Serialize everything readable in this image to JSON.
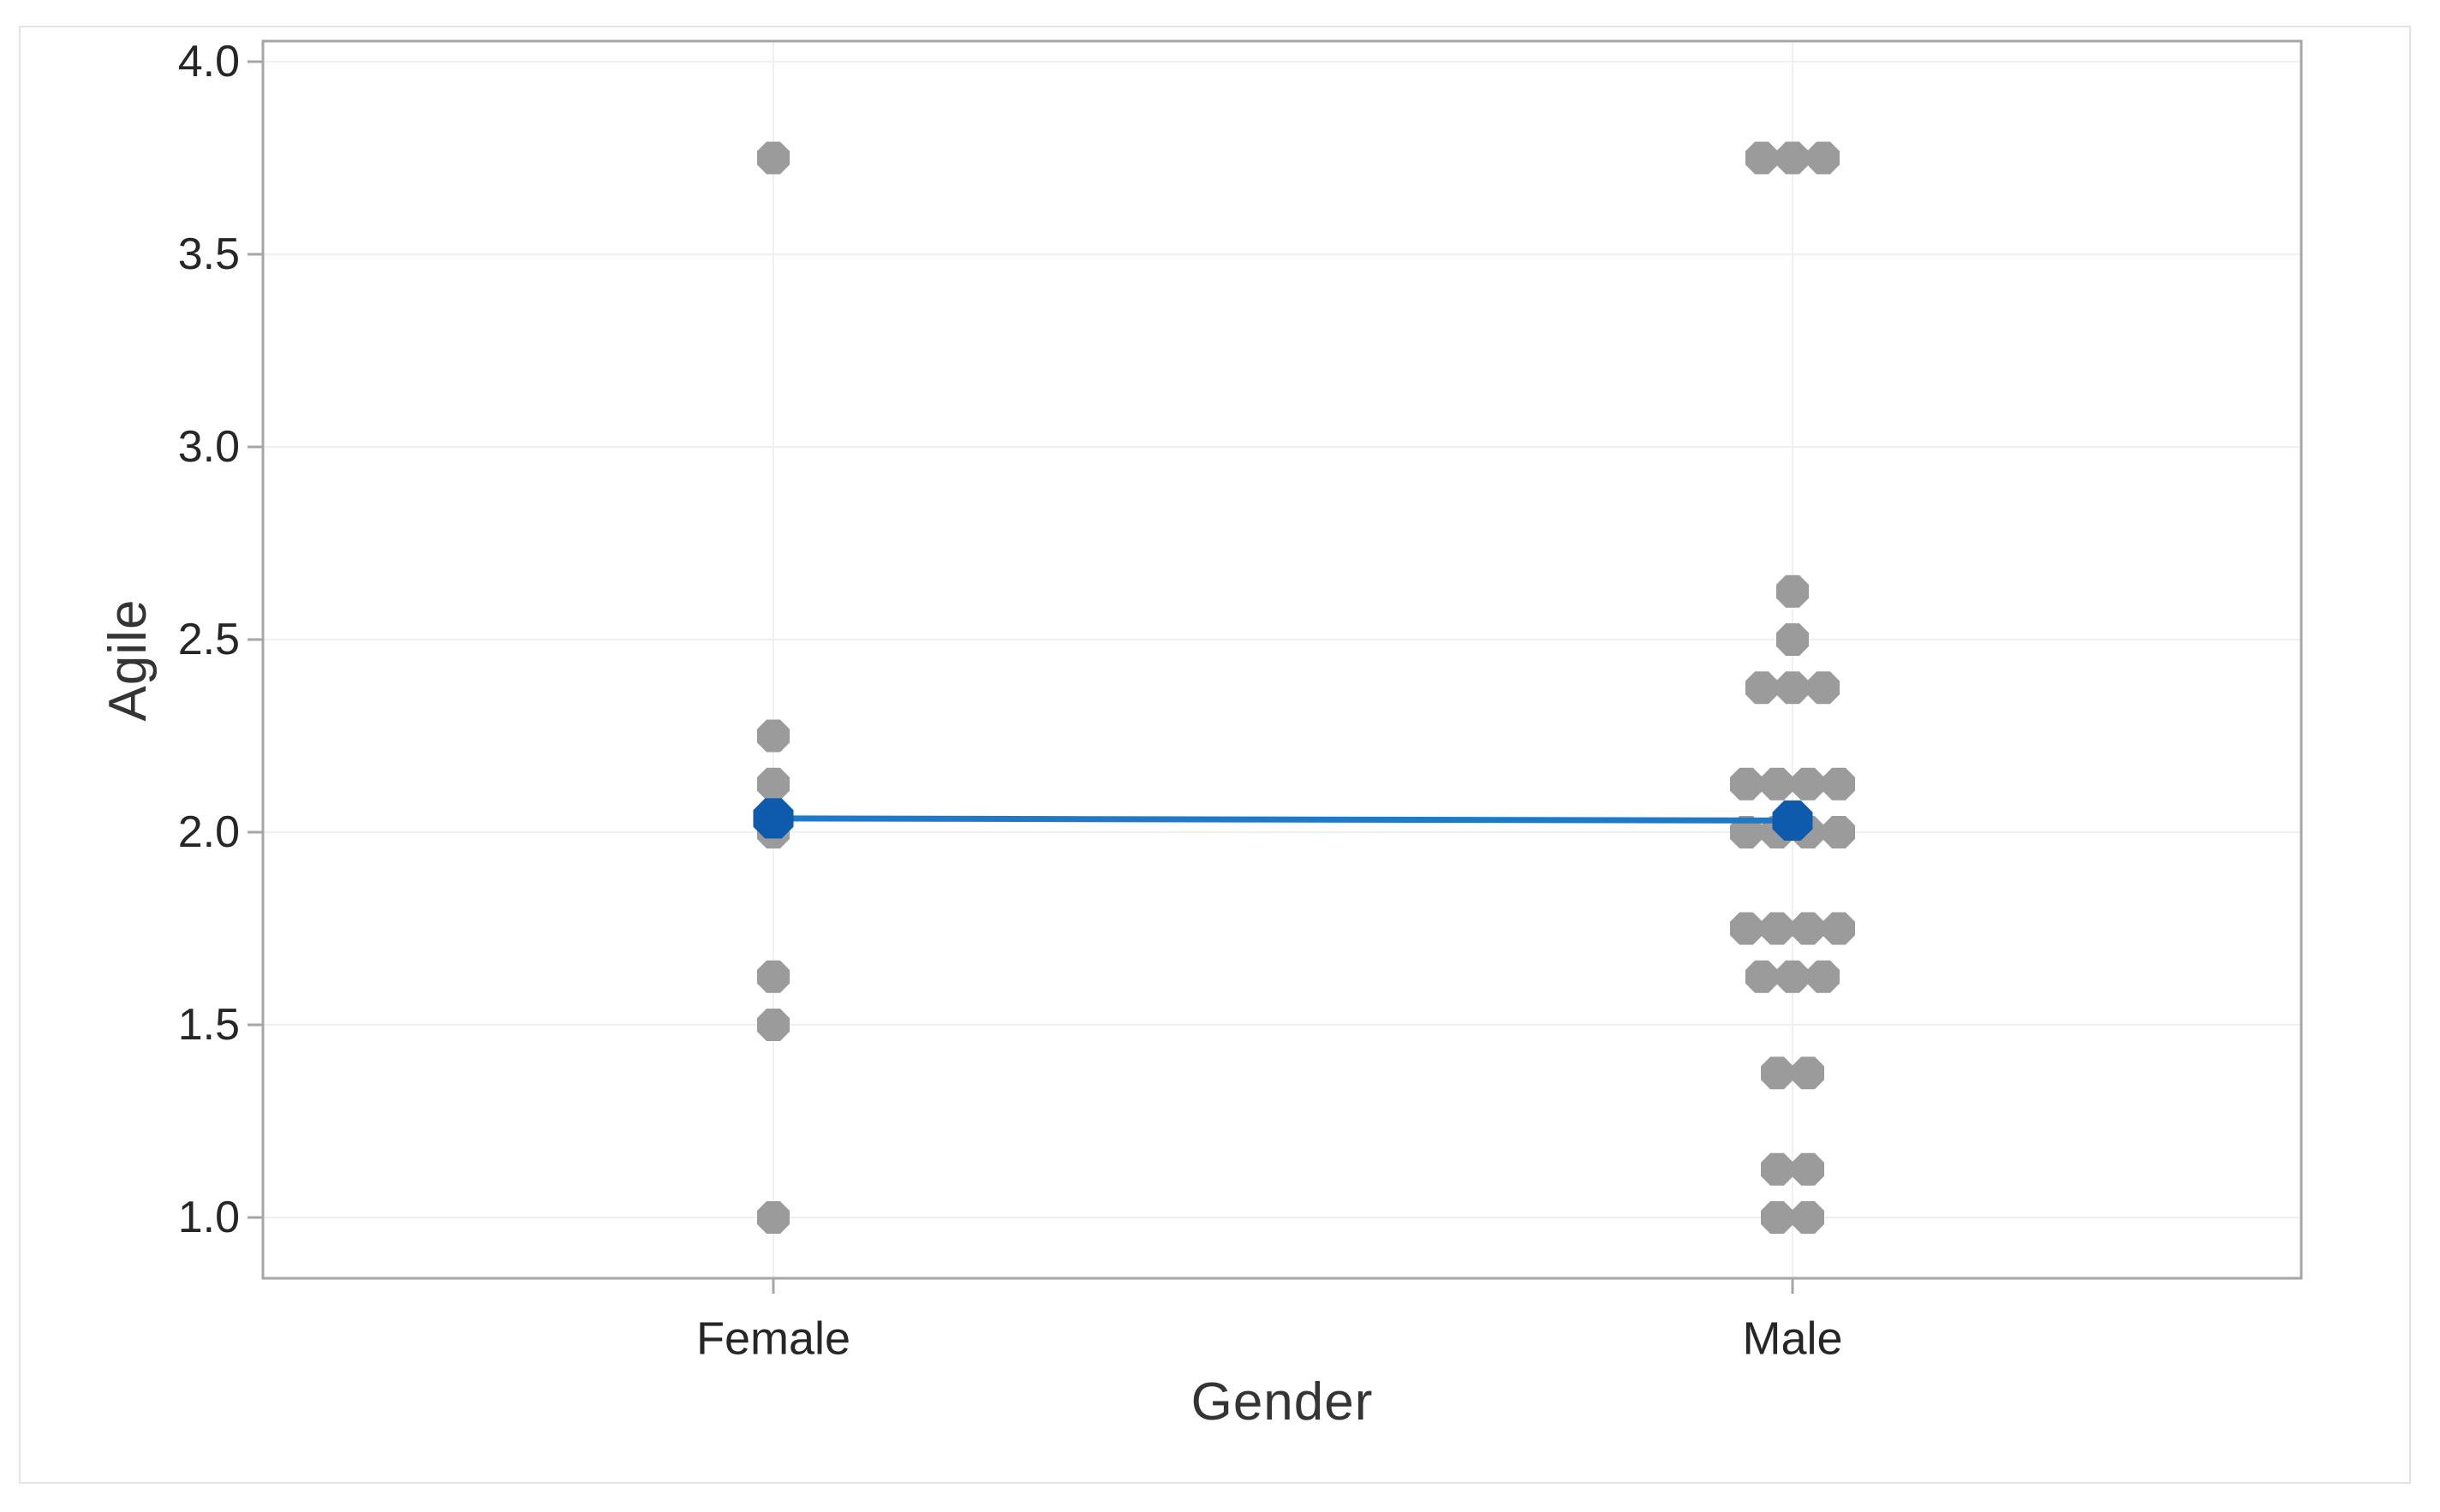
{
  "chart_data": {
    "type": "scatter",
    "subtype": "individual-value-plot",
    "title": "",
    "xlabel": "Gender",
    "ylabel": "Agile",
    "categories": [
      "Female",
      "Male"
    ],
    "yticks": [
      1.0,
      1.5,
      2.0,
      2.5,
      3.0,
      3.5,
      4.0
    ],
    "ytick_labels": [
      "1.0",
      "1.5",
      "2.0",
      "2.5",
      "3.0",
      "3.5",
      "4.0"
    ],
    "ylim": [
      0.85,
      4.05
    ],
    "grid": true,
    "legend": false,
    "series": [
      {
        "name": "Female",
        "values": [
          3.75,
          2.25,
          2.125,
          2.0,
          1.625,
          1.5,
          1.0
        ],
        "mean": 2.04
      },
      {
        "name": "Male",
        "values": [
          3.75,
          3.75,
          3.75,
          2.625,
          2.5,
          2.375,
          2.375,
          2.375,
          2.125,
          2.125,
          2.125,
          2.125,
          2.0,
          2.0,
          2.0,
          2.0,
          1.75,
          1.75,
          1.75,
          1.75,
          1.625,
          1.625,
          1.625,
          1.375,
          1.375,
          1.125,
          1.125,
          1.0,
          1.0
        ],
        "mean": 2.03
      }
    ],
    "mean_connector_line": true,
    "colors": {
      "point": "#9b9b9b",
      "mean_point": "#0e5bad",
      "mean_line": "#1e7ac9",
      "frame": "#a6a6a6",
      "gridline": "#f0f0f0",
      "tick_text": "#262626",
      "canvas_border": "#e3e3e3"
    }
  }
}
